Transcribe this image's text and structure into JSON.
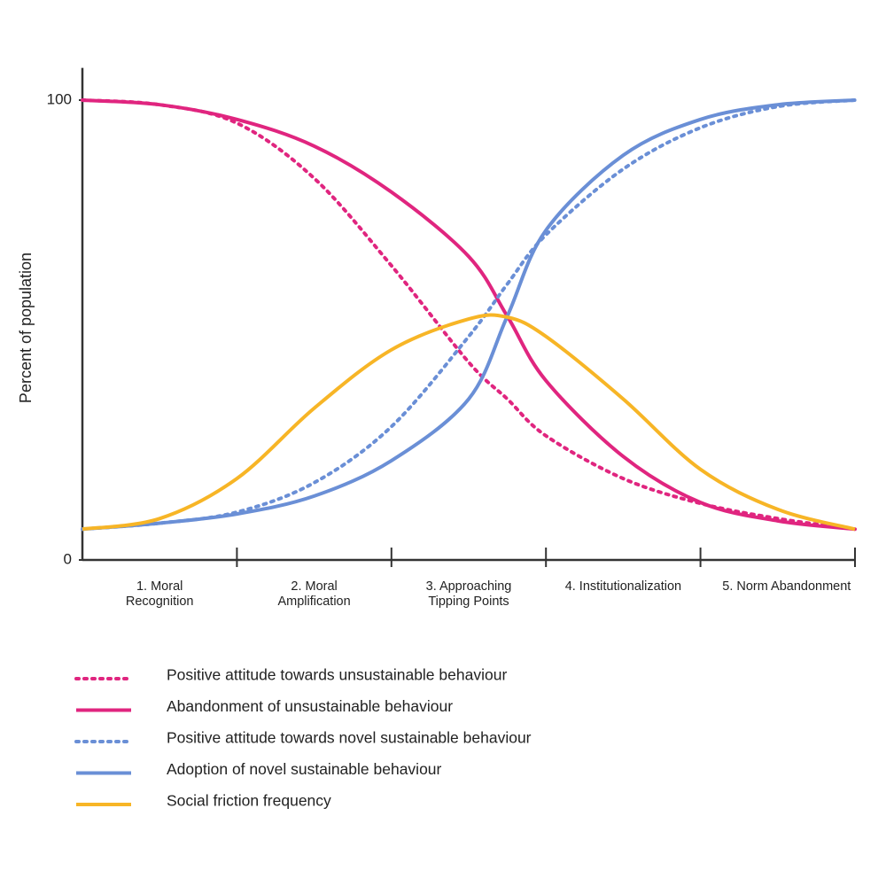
{
  "chart_data": {
    "type": "line",
    "y_label": "Percent of population",
    "categories": [
      "1. Moral\nRecognition",
      "2. Moral\nAmplification",
      "3. Approaching\nTipping Points",
      "4. Institutionalization",
      "5. Norm Abandonment"
    ],
    "x": [
      0,
      0.5,
      1,
      1.5,
      2,
      2.5,
      2.75,
      3,
      3.5,
      4,
      4.5,
      5
    ],
    "xlim": [
      0,
      5
    ],
    "ylim": [
      0,
      107
    ],
    "yticks": [
      0,
      100
    ],
    "grid": false,
    "legend": "bottom-left",
    "series": [
      {
        "name": "Positive attitude towards unsustainable behaviour",
        "color": "#e0257f",
        "dash": true,
        "values": [
          100,
          99,
          95,
          83,
          64,
          43,
          35,
          27,
          17.7,
          12.3,
          9,
          6.7
        ]
      },
      {
        "name": "Abandonment of unsustainable behaviour",
        "color": "#e0257f",
        "dash": false,
        "values": [
          100,
          99,
          95.8,
          90,
          80,
          66,
          53,
          39,
          22.5,
          12.5,
          8.5,
          6.7
        ]
      },
      {
        "name": "Positive attitude towards novel sustainable behaviour",
        "color": "#6a8fd6",
        "dash": true,
        "values": [
          6.7,
          8,
          10.4,
          16.8,
          29,
          48.6,
          60,
          70.7,
          85,
          94,
          98.6,
          100
        ]
      },
      {
        "name": "Adoption of novel sustainable behaviour",
        "color": "#6a8fd6",
        "dash": false,
        "values": [
          6.7,
          8,
          10,
          13.9,
          21.6,
          35,
          53,
          71.7,
          88,
          95.8,
          99,
          100
        ]
      },
      {
        "name": "Social friction frequency",
        "color": "#f7b526",
        "dash": false,
        "values": [
          6.7,
          9,
          17.7,
          33,
          45.7,
          52.4,
          52.8,
          48.6,
          35,
          19.7,
          11,
          6.7
        ]
      }
    ]
  }
}
